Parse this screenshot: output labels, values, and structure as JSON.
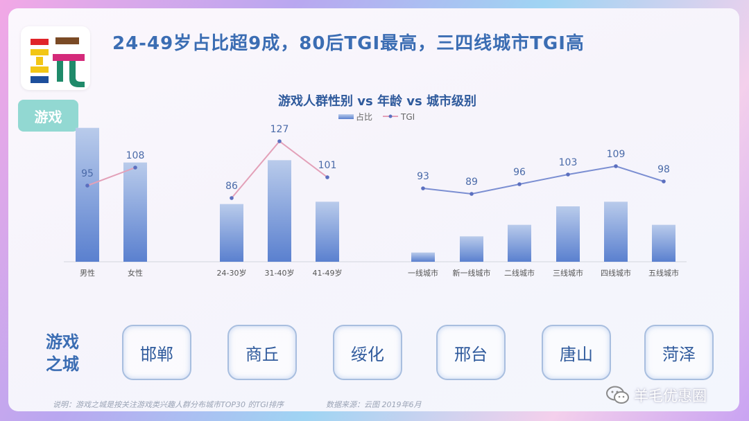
{
  "header": {
    "title": "24-49岁占比超9成，80后TGI最高，三四线城市TGI高",
    "tag": "游戏"
  },
  "logo": {
    "char": "玩"
  },
  "cities": {
    "heading_line1": "游戏",
    "heading_line2": "之城",
    "items": [
      "邯郸",
      "商丘",
      "绥化",
      "邢台",
      "唐山",
      "菏泽"
    ]
  },
  "footer": {
    "note": "说明：游戏之城是按关注游戏类兴趣人群分布城市TOP30 的TGI排序",
    "source": "数据来源：云图 2019年6月",
    "watermark": "羊毛优惠圈"
  },
  "colors": {
    "bar_top": "#b7c8ea",
    "bar_bottom": "#5b82cf",
    "tgi_pink": "#e3a0b8",
    "tgi_purple": "#7b8ed2",
    "accent": "#3b6db3"
  },
  "chart_data": {
    "type": "bar",
    "title": "游戏人群性别 vs 年龄 vs 城市级别",
    "legend": {
      "bar_label": "占比",
      "line_label": "TGI",
      "placement": "top-center"
    },
    "grid": false,
    "groups": [
      {
        "name": "gender",
        "categories": [
          "男性",
          "女性"
        ],
        "share": [
          58,
          43
        ],
        "tgi": [
          95,
          108
        ]
      },
      {
        "name": "age",
        "categories": [
          "24-30岁",
          "31-40岁",
          "41-49岁"
        ],
        "share": [
          25,
          44,
          26
        ],
        "tgi": [
          86,
          127,
          101
        ]
      },
      {
        "name": "city_tier",
        "categories": [
          "一线城市",
          "新一线城市",
          "二线城市",
          "三线城市",
          "四线城市",
          "五线城市"
        ],
        "share": [
          4,
          11,
          16,
          24,
          26,
          16
        ],
        "tgi": [
          93,
          89,
          96,
          103,
          109,
          98
        ]
      }
    ],
    "share_ylim": [
      0,
      60
    ],
    "tgi_ylim": [
      40,
      140
    ]
  }
}
